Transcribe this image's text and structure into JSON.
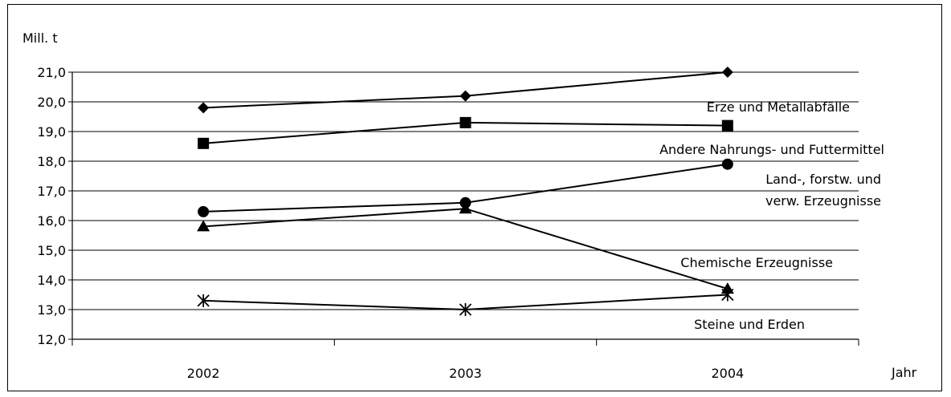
{
  "chart_data": {
    "type": "line",
    "title": "",
    "ylabel": "Mill. t",
    "xlabel": "Jahr",
    "categories": [
      "2002",
      "2003",
      "2004"
    ],
    "ylim": [
      12.0,
      21.0
    ],
    "yticks": [
      "12,0",
      "13,0",
      "14,0",
      "15,0",
      "16,0",
      "17,0",
      "18,0",
      "19,0",
      "20,0",
      "21,0"
    ],
    "grid": true,
    "series": [
      {
        "name": "Erze und Metallabfälle",
        "marker": "diamond",
        "values": [
          19.8,
          20.2,
          21.0
        ],
        "label_lines": [
          "Erze und  Metallabfälle"
        ]
      },
      {
        "name": "Andere Nahrungs- und Futtermittel",
        "marker": "square",
        "values": [
          18.6,
          19.3,
          19.2
        ],
        "label_lines": [
          "Andere Nahrungs- und Futtermittel"
        ]
      },
      {
        "name": "Land-, forstw. und verw. Erzeugnisse",
        "marker": "circle",
        "values": [
          16.3,
          16.6,
          17.9
        ],
        "label_lines": [
          "Land-, forstw. und",
          "verw. Erzeugnisse"
        ]
      },
      {
        "name": "Chemische Erzeugnisse",
        "marker": "triangle",
        "values": [
          15.8,
          16.4,
          13.7
        ],
        "label_lines": [
          "Chemische Erzeugnisse"
        ]
      },
      {
        "name": "Steine und Erden",
        "marker": "star",
        "values": [
          13.3,
          13.0,
          13.5
        ],
        "label_lines": [
          "Steine und Erden"
        ]
      }
    ]
  }
}
